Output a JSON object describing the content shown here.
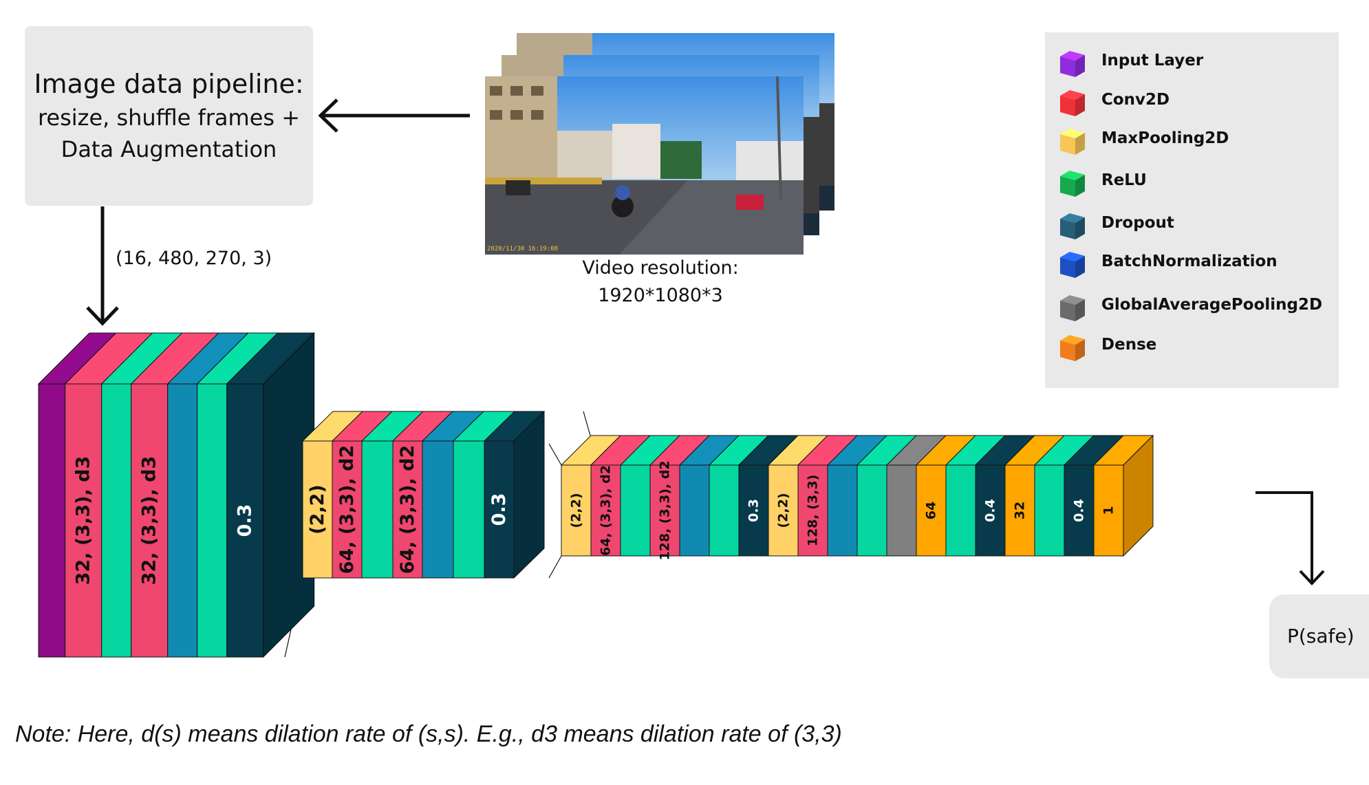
{
  "pipeline": {
    "title": "Image data pipeline:",
    "line2": "resize, shuffle frames +",
    "line3": "Data Augmentation"
  },
  "input_shape": "(16, 480, 270, 3)",
  "video": {
    "label_line1": "Video resolution:",
    "label_line2": "1920*1080*3",
    "timestamp": "2020/11/30 16:19:08"
  },
  "legend": [
    {
      "label": "Input Layer",
      "color": "#8e2ce0"
    },
    {
      "label": "Conv2D",
      "color": "#f0313a"
    },
    {
      "label": "MaxPooling2D",
      "color": "#f7c657"
    },
    {
      "label": "ReLU",
      "color": "#17a94f"
    },
    {
      "label": "Dropout",
      "color": "#275e78"
    },
    {
      "label": "BatchNormalization",
      "color": "#1f4fc4"
    },
    {
      "label": "GlobalAveragePooling2D",
      "color": "#6b6b6b"
    },
    {
      "label": "Dense",
      "color": "#f07d1b"
    }
  ],
  "colors": {
    "input": "#8e0a86",
    "conv": "#ef476f",
    "relu": "#06d6a0",
    "bn": "#118ab2",
    "dropout": "#073b4c",
    "pool": "#ffd166",
    "gap": "#808080",
    "dense": "#ffa500",
    "outline": "#111111"
  },
  "layers": {
    "block1": [
      {
        "type": "input",
        "label": ""
      },
      {
        "type": "conv",
        "label": "32, (3,3), d3"
      },
      {
        "type": "relu",
        "label": ""
      },
      {
        "type": "conv",
        "label": "32, (3,3), d3"
      },
      {
        "type": "bn",
        "label": ""
      },
      {
        "type": "relu",
        "label": ""
      },
      {
        "type": "dropout",
        "label": "0.3"
      }
    ],
    "block2": [
      {
        "type": "pool",
        "label": "(2,2)"
      },
      {
        "type": "conv",
        "label": "64, (3,3), d2"
      },
      {
        "type": "relu",
        "label": ""
      },
      {
        "type": "conv",
        "label": "64, (3,3), d2"
      },
      {
        "type": "bn",
        "label": ""
      },
      {
        "type": "relu",
        "label": ""
      },
      {
        "type": "dropout",
        "label": "0.3"
      }
    ],
    "block3": [
      {
        "type": "pool",
        "label": "(2,2)"
      },
      {
        "type": "conv",
        "label": "64, (3,3), d2"
      },
      {
        "type": "relu",
        "label": ""
      },
      {
        "type": "conv",
        "label": "128, (3,3), d2"
      },
      {
        "type": "bn",
        "label": ""
      },
      {
        "type": "relu",
        "label": ""
      },
      {
        "type": "dropout",
        "label": "0.3"
      },
      {
        "type": "pool",
        "label": "(2,2)"
      },
      {
        "type": "conv",
        "label": "128, (3,3)"
      },
      {
        "type": "bn",
        "label": ""
      },
      {
        "type": "relu",
        "label": ""
      },
      {
        "type": "gap",
        "label": ""
      },
      {
        "type": "dense",
        "label": "64"
      },
      {
        "type": "relu",
        "label": ""
      },
      {
        "type": "dropout",
        "label": "0.4"
      },
      {
        "type": "dense",
        "label": "32"
      },
      {
        "type": "relu",
        "label": ""
      },
      {
        "type": "dropout",
        "label": "0.4"
      },
      {
        "type": "dense",
        "label": "1"
      }
    ]
  },
  "output": "P(safe)",
  "note": "Note: Here, d(s) means dilation rate of (s,s). E.g., d3 means dilation rate of (3,3)"
}
